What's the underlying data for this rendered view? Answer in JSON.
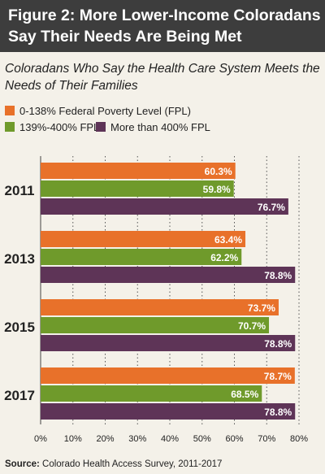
{
  "header": {
    "line1": "Figure 2: More Lower-Income Coloradans",
    "line2": "Say Their Needs Are Being Met"
  },
  "subtitle": {
    "line1": "Coloradans Who Say the Health Care System Meets the",
    "line2": "Needs of Their Families"
  },
  "source": {
    "label": "Source:",
    "text": " Colorado Health Access Survey, 2011-2017"
  },
  "colors": {
    "orange": "#e8712a",
    "green": "#6f9a2b",
    "purple": "#5e3457"
  },
  "chart_data": {
    "type": "bar",
    "orientation": "horizontal",
    "categories": [
      "2011",
      "2013",
      "2015",
      "2017"
    ],
    "series": [
      {
        "name": "0-138% Federal Poverty Level (FPL)",
        "color": "#e8712a",
        "values": [
          60.3,
          63.4,
          73.7,
          78.7
        ],
        "labels": [
          "60.3%",
          "63.4%",
          "73.7%",
          "78.7%"
        ]
      },
      {
        "name": "139%-400% FPL",
        "color": "#6f9a2b",
        "values": [
          59.8,
          62.2,
          70.7,
          68.5
        ],
        "labels": [
          "59.8%",
          "62.2%",
          "70.7%",
          "68.5%"
        ]
      },
      {
        "name": "More than 400% FPL",
        "color": "#5e3457",
        "values": [
          76.7,
          78.8,
          78.8,
          78.8
        ],
        "labels": [
          "76.7%",
          "78.8%",
          "78.8%",
          "78.8%"
        ]
      }
    ],
    "xlim": [
      0,
      80
    ],
    "xticks": [
      "0%",
      "10%",
      "20%",
      "30%",
      "40%",
      "50%",
      "60%",
      "70%",
      "80%"
    ],
    "grid": "vertical dotted",
    "legend": "top-left"
  }
}
